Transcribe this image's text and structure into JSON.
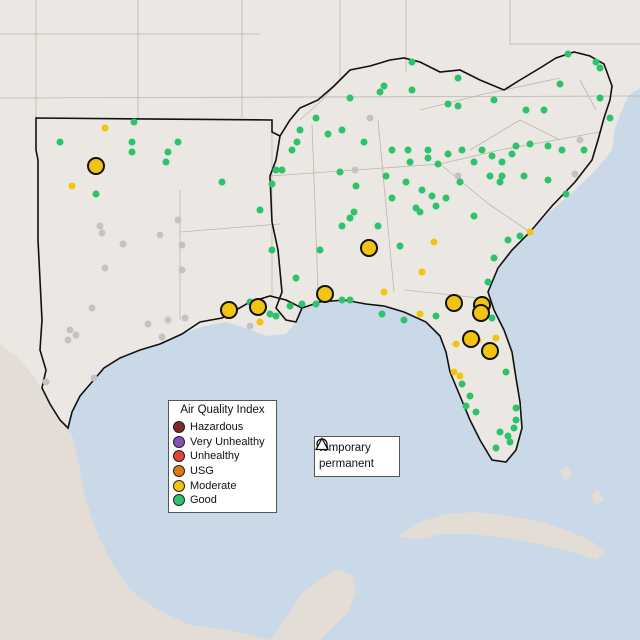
{
  "legend": {
    "title": "Air Quality Index",
    "categories": [
      {
        "label": "Hazardous",
        "color": "#7e2a2a"
      },
      {
        "label": "Very Unhealthy",
        "color": "#8a4fb5"
      },
      {
        "label": "Unhealthy",
        "color": "#e0442f"
      },
      {
        "label": "USG",
        "color": "#e07a14"
      },
      {
        "label": "Moderate",
        "color": "#f2c40f"
      },
      {
        "label": "Good",
        "color": "#2ec26a"
      }
    ],
    "no_data_color": "#c3c3c3"
  },
  "monitor_types": {
    "temporary_label": "temporary",
    "permanent_label": "permanent"
  }
}
